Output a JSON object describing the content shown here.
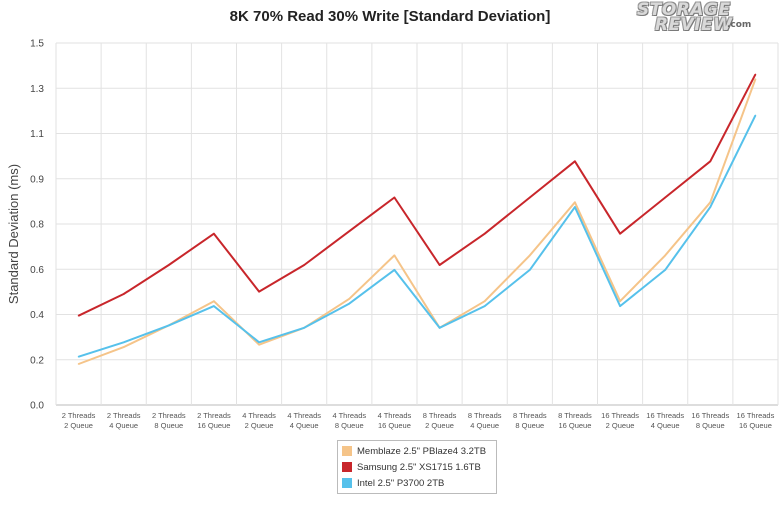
{
  "logo": {
    "line1": "STORAGE",
    "line2": "REVIEW",
    "suffix": ".com"
  },
  "chart_data": {
    "type": "line",
    "title": "8K 70% Read 30% Write [Standard Deviation]",
    "ylabel": "Standard Deviation (ms)",
    "xlabel": "",
    "ylim": [
      0,
      1.5
    ],
    "yticks": [
      "0.0",
      "0.2",
      "0.4",
      "0.6",
      "0.8",
      "0.9",
      "1.1",
      "1.3",
      "1.5"
    ],
    "grid": true,
    "legend_position": "bottom-center",
    "categories": [
      [
        "2 Threads",
        "2 Queue"
      ],
      [
        "2 Threads",
        "4 Queue"
      ],
      [
        "2 Threads",
        "8 Queue"
      ],
      [
        "2 Threads",
        "16 Queue"
      ],
      [
        "4 Threads",
        "2 Queue"
      ],
      [
        "4 Threads",
        "4 Queue"
      ],
      [
        "4 Threads",
        "8 Queue"
      ],
      [
        "4 Threads",
        "16 Queue"
      ],
      [
        "8 Threads",
        "2 Queue"
      ],
      [
        "8 Threads",
        "4 Queue"
      ],
      [
        "8 Threads",
        "8 Queue"
      ],
      [
        "8 Threads",
        "16 Queue"
      ],
      [
        "16 Threads",
        "2 Queue"
      ],
      [
        "16 Threads",
        "4 Queue"
      ],
      [
        "16 Threads",
        "8 Queue"
      ],
      [
        "16 Threads",
        "16 Queue"
      ]
    ],
    "series": [
      {
        "name": "Memblaze 2.5\" PBlaze4 3.2TB",
        "color": "#f5c489",
        "values": [
          0.17,
          0.24,
          0.33,
          0.43,
          0.25,
          0.32,
          0.44,
          0.62,
          0.32,
          0.43,
          0.62,
          0.84,
          0.43,
          0.62,
          0.84,
          1.35
        ]
      },
      {
        "name": "Samsung 2.5\" XS1715 1.6TB",
        "color": "#c8262b",
        "values": [
          0.37,
          0.46,
          0.58,
          0.71,
          0.47,
          0.58,
          0.72,
          0.86,
          0.58,
          0.71,
          0.86,
          1.01,
          0.71,
          0.86,
          1.01,
          1.37
        ]
      },
      {
        "name": "Intel 2.5\" P3700 2TB",
        "color": "#56c1eb",
        "values": [
          0.2,
          0.26,
          0.33,
          0.41,
          0.26,
          0.32,
          0.42,
          0.56,
          0.32,
          0.41,
          0.56,
          0.82,
          0.41,
          0.56,
          0.82,
          1.2
        ]
      }
    ]
  }
}
